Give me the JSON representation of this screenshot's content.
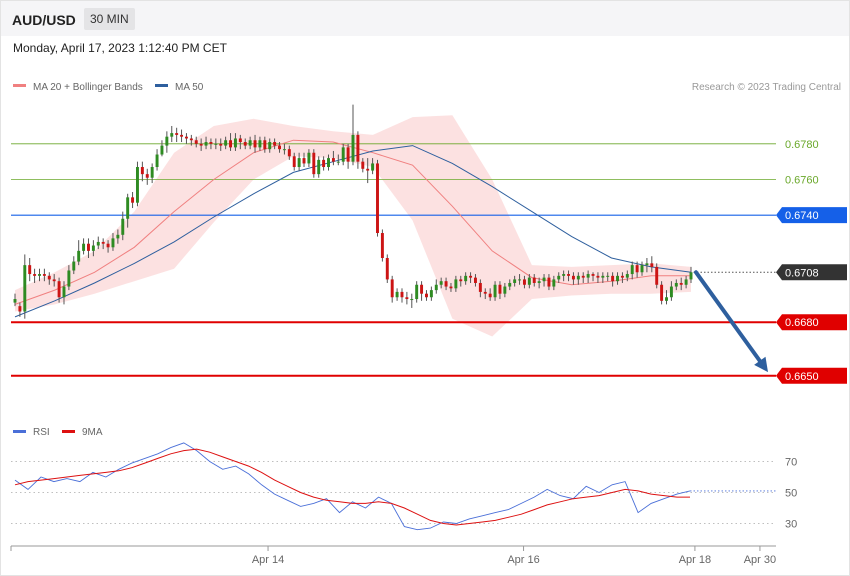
{
  "header": {
    "symbol": "AUD/USD",
    "timeframe": "30 MIN",
    "timestamp": "Monday, April 17, 2023 1:12:40 PM CET"
  },
  "legend": {
    "ma20_label": "MA 20 + Bollinger Bands",
    "ma20_color": "#f08080",
    "ma50_label": "MA 50",
    "ma50_color": "#2e5f9e",
    "copyright": "Research © 2023 Trading Central"
  },
  "rsi_legend": {
    "rsi_label": "RSI",
    "rsi_color": "#4a6fd8",
    "ma_label": "9MA",
    "ma_color": "#dd1111"
  },
  "chart_data": [
    {
      "type": "candlestick",
      "title": "",
      "ylim": [
        0.6628,
        0.6804
      ],
      "levels": [
        {
          "value": 0.678,
          "label": "0.6780",
          "kind": "target",
          "color": "#6aa82a"
        },
        {
          "value": 0.676,
          "label": "0.6760",
          "kind": "target",
          "color": "#6aa82a"
        },
        {
          "value": 0.674,
          "label": "0.6740",
          "kind": "resistance",
          "color": "#1560e8"
        },
        {
          "value": 0.6708,
          "label": "0.6708",
          "kind": "last",
          "color": "#333333"
        },
        {
          "value": 0.668,
          "label": "0.6680",
          "kind": "support",
          "color": "#e00000"
        },
        {
          "value": 0.665,
          "label": "0.6650",
          "kind": "support",
          "color": "#e00000"
        }
      ],
      "candles": [
        [
          0.6691,
          0.6693,
          0.6689,
          0.6696
        ],
        [
          0.6689,
          0.6686,
          0.6683,
          0.6691
        ],
        [
          0.6686,
          0.6712,
          0.6682,
          0.6718
        ],
        [
          0.6712,
          0.6707,
          0.6703,
          0.6716
        ],
        [
          0.6707,
          0.6706,
          0.6702,
          0.671
        ],
        [
          0.6706,
          0.6707,
          0.6703,
          0.671
        ],
        [
          0.6707,
          0.6706,
          0.6703,
          0.671
        ],
        [
          0.6706,
          0.6704,
          0.6701,
          0.6708
        ],
        [
          0.6704,
          0.6703,
          0.67,
          0.6707
        ],
        [
          0.6703,
          0.6694,
          0.6691,
          0.6705
        ],
        [
          0.6694,
          0.67,
          0.669,
          0.6703
        ],
        [
          0.67,
          0.6709,
          0.6698,
          0.6712
        ],
        [
          0.6709,
          0.6714,
          0.6707,
          0.6717
        ],
        [
          0.6714,
          0.672,
          0.6712,
          0.6726
        ],
        [
          0.672,
          0.6724,
          0.6718,
          0.6727
        ],
        [
          0.6724,
          0.672,
          0.6716,
          0.6727
        ],
        [
          0.672,
          0.6723,
          0.6717,
          0.6726
        ],
        [
          0.6723,
          0.6725,
          0.6721,
          0.6728
        ],
        [
          0.6725,
          0.6724,
          0.6721,
          0.6727
        ],
        [
          0.6724,
          0.6722,
          0.6719,
          0.6726
        ],
        [
          0.6722,
          0.6727,
          0.672,
          0.673
        ],
        [
          0.6727,
          0.6729,
          0.6724,
          0.6732
        ],
        [
          0.6729,
          0.6738,
          0.6726,
          0.6742
        ],
        [
          0.6738,
          0.675,
          0.6733,
          0.6752
        ],
        [
          0.675,
          0.6747,
          0.6744,
          0.6753
        ],
        [
          0.6747,
          0.6767,
          0.6745,
          0.677
        ],
        [
          0.6767,
          0.6763,
          0.6759,
          0.677
        ],
        [
          0.6763,
          0.6761,
          0.6757,
          0.6766
        ],
        [
          0.6761,
          0.6767,
          0.6758,
          0.6769
        ],
        [
          0.6767,
          0.6774,
          0.6765,
          0.6777
        ],
        [
          0.6774,
          0.6779,
          0.6773,
          0.6782
        ],
        [
          0.6779,
          0.6784,
          0.6775,
          0.6787
        ],
        [
          0.6784,
          0.6786,
          0.6781,
          0.679
        ],
        [
          0.6786,
          0.6785,
          0.6781,
          0.6789
        ],
        [
          0.6785,
          0.6784,
          0.6781,
          0.6788
        ],
        [
          0.6784,
          0.6783,
          0.678,
          0.6786
        ],
        [
          0.6783,
          0.6782,
          0.6779,
          0.6785
        ],
        [
          0.6782,
          0.678,
          0.6778,
          0.6784
        ],
        [
          0.678,
          0.6779,
          0.6776,
          0.6783
        ],
        [
          0.6779,
          0.6781,
          0.6777,
          0.6784
        ],
        [
          0.6781,
          0.678,
          0.6777,
          0.6783
        ],
        [
          0.678,
          0.678,
          0.6777,
          0.6783
        ],
        [
          0.678,
          0.6779,
          0.6776,
          0.6783
        ],
        [
          0.6779,
          0.6782,
          0.6777,
          0.6784
        ],
        [
          0.6782,
          0.6778,
          0.6776,
          0.6786
        ],
        [
          0.6778,
          0.6783,
          0.6776,
          0.6786
        ],
        [
          0.6783,
          0.6781,
          0.6777,
          0.6785
        ],
        [
          0.6781,
          0.6779,
          0.6777,
          0.6783
        ],
        [
          0.6779,
          0.6782,
          0.6777,
          0.6784
        ],
        [
          0.6782,
          0.6778,
          0.6775,
          0.6785
        ],
        [
          0.6778,
          0.6782,
          0.6776,
          0.6784
        ],
        [
          0.6782,
          0.6777,
          0.6775,
          0.6784
        ],
        [
          0.6777,
          0.6781,
          0.6775,
          0.6783
        ],
        [
          0.6781,
          0.6779,
          0.6777,
          0.6783
        ],
        [
          0.6779,
          0.6777,
          0.6775,
          0.6781
        ],
        [
          0.6777,
          0.6777,
          0.6774,
          0.678
        ],
        [
          0.6777,
          0.6773,
          0.6771,
          0.6779
        ],
        [
          0.6773,
          0.6767,
          0.6765,
          0.6775
        ],
        [
          0.6767,
          0.6772,
          0.6765,
          0.6775
        ],
        [
          0.6772,
          0.6769,
          0.6767,
          0.6775
        ],
        [
          0.6769,
          0.6775,
          0.6767,
          0.6777
        ],
        [
          0.6775,
          0.6763,
          0.6761,
          0.6777
        ],
        [
          0.6763,
          0.6771,
          0.6761,
          0.6773
        ],
        [
          0.6771,
          0.6767,
          0.6765,
          0.6773
        ],
        [
          0.6767,
          0.6772,
          0.6765,
          0.6774
        ],
        [
          0.6772,
          0.677,
          0.6768,
          0.6776
        ],
        [
          0.677,
          0.677,
          0.6768,
          0.6774
        ],
        [
          0.677,
          0.6778,
          0.6768,
          0.678
        ],
        [
          0.6778,
          0.677,
          0.6766,
          0.678
        ],
        [
          0.677,
          0.6785,
          0.6768,
          0.6802
        ],
        [
          0.6785,
          0.677,
          0.6766,
          0.6787
        ],
        [
          0.677,
          0.6766,
          0.6764,
          0.6772
        ],
        [
          0.6766,
          0.6765,
          0.6758,
          0.6772
        ],
        [
          0.6765,
          0.6769,
          0.6763,
          0.6772
        ],
        [
          0.6769,
          0.673,
          0.6728,
          0.6771
        ],
        [
          0.673,
          0.6716,
          0.6714,
          0.6732
        ],
        [
          0.6716,
          0.6704,
          0.6702,
          0.6718
        ],
        [
          0.6704,
          0.6694,
          0.6691,
          0.6706
        ],
        [
          0.6694,
          0.6697,
          0.6692,
          0.6699
        ],
        [
          0.6697,
          0.6694,
          0.6691,
          0.6699
        ],
        [
          0.6694,
          0.6693,
          0.669,
          0.6697
        ],
        [
          0.6693,
          0.6693,
          0.6688,
          0.6696
        ],
        [
          0.6693,
          0.6701,
          0.6691,
          0.6703
        ],
        [
          0.6701,
          0.6696,
          0.6692,
          0.6703
        ],
        [
          0.6696,
          0.6694,
          0.6692,
          0.6698
        ],
        [
          0.6694,
          0.6698,
          0.6692,
          0.67
        ],
        [
          0.6698,
          0.6701,
          0.6696,
          0.6704
        ],
        [
          0.6701,
          0.6703,
          0.6699,
          0.6705
        ],
        [
          0.6703,
          0.67,
          0.6698,
          0.6705
        ],
        [
          0.67,
          0.6699,
          0.6697,
          0.6702
        ],
        [
          0.6699,
          0.6704,
          0.6697,
          0.6706
        ],
        [
          0.6704,
          0.6703,
          0.67,
          0.6706
        ],
        [
          0.6703,
          0.6706,
          0.6701,
          0.6708
        ],
        [
          0.6706,
          0.6705,
          0.6702,
          0.6708
        ],
        [
          0.6705,
          0.6702,
          0.67,
          0.6707
        ],
        [
          0.6702,
          0.6697,
          0.6694,
          0.6704
        ],
        [
          0.6697,
          0.6696,
          0.6693,
          0.6699
        ],
        [
          0.6696,
          0.6694,
          0.6692,
          0.6699
        ],
        [
          0.6694,
          0.6701,
          0.6692,
          0.6703
        ],
        [
          0.6701,
          0.6696,
          0.6693,
          0.6703
        ],
        [
          0.6696,
          0.67,
          0.6694,
          0.6702
        ],
        [
          0.67,
          0.6702,
          0.6698,
          0.6704
        ],
        [
          0.6702,
          0.6704,
          0.67,
          0.6706
        ],
        [
          0.6704,
          0.6704,
          0.6701,
          0.6707
        ],
        [
          0.6704,
          0.6701,
          0.6699,
          0.6706
        ],
        [
          0.6701,
          0.6705,
          0.6699,
          0.6707
        ],
        [
          0.6705,
          0.6702,
          0.67,
          0.6707
        ],
        [
          0.6702,
          0.6703,
          0.6699,
          0.6705
        ],
        [
          0.6703,
          0.6705,
          0.67,
          0.6707
        ],
        [
          0.6705,
          0.67,
          0.6698,
          0.6707
        ],
        [
          0.67,
          0.6704,
          0.6698,
          0.6706
        ],
        [
          0.6704,
          0.6706,
          0.6702,
          0.6708
        ],
        [
          0.6706,
          0.6707,
          0.6703,
          0.6709
        ],
        [
          0.6707,
          0.6706,
          0.6703,
          0.6709
        ],
        [
          0.6706,
          0.6704,
          0.6701,
          0.6708
        ],
        [
          0.6704,
          0.6706,
          0.6701,
          0.6708
        ],
        [
          0.6706,
          0.6705,
          0.6702,
          0.6708
        ],
        [
          0.6705,
          0.6707,
          0.6702,
          0.6709
        ],
        [
          0.6707,
          0.6706,
          0.6703,
          0.6708
        ],
        [
          0.6706,
          0.6705,
          0.6702,
          0.6708
        ],
        [
          0.6705,
          0.6706,
          0.6702,
          0.6708
        ],
        [
          0.6706,
          0.6706,
          0.6703,
          0.6708
        ],
        [
          0.6706,
          0.6703,
          0.67,
          0.6708
        ],
        [
          0.6703,
          0.6706,
          0.6701,
          0.6708
        ],
        [
          0.6706,
          0.6705,
          0.6702,
          0.6708
        ],
        [
          0.6705,
          0.6707,
          0.6703,
          0.6709
        ],
        [
          0.6707,
          0.6712,
          0.6704,
          0.6714
        ],
        [
          0.6712,
          0.6708,
          0.6705,
          0.6714
        ],
        [
          0.6708,
          0.6712,
          0.6706,
          0.6714
        ],
        [
          0.6712,
          0.6713,
          0.6708,
          0.6716
        ],
        [
          0.6713,
          0.6711,
          0.6708,
          0.6717
        ],
        [
          0.6711,
          0.6701,
          0.6699,
          0.6713
        ],
        [
          0.6701,
          0.6692,
          0.669,
          0.6703
        ],
        [
          0.6692,
          0.6694,
          0.669,
          0.6698
        ],
        [
          0.6694,
          0.67,
          0.6692,
          0.6703
        ],
        [
          0.67,
          0.6702,
          0.6698,
          0.6704
        ],
        [
          0.6702,
          0.6701,
          0.6698,
          0.6705
        ],
        [
          0.6701,
          0.6704,
          0.6699,
          0.6706
        ],
        [
          0.6704,
          0.6708,
          0.6702,
          0.6711
        ]
      ],
      "ma50": [
        0.6683,
        0.6692,
        0.6702,
        0.6713,
        0.6725,
        0.6739,
        0.6752,
        0.6764,
        0.677,
        0.6776,
        0.6779,
        0.6769,
        0.6756,
        0.6742,
        0.6728,
        0.6716,
        0.6711,
        0.6708
      ],
      "ma20": [
        0.669,
        0.6698,
        0.6708,
        0.6722,
        0.6742,
        0.676,
        0.6775,
        0.6782,
        0.6781,
        0.6775,
        0.6768,
        0.6745,
        0.672,
        0.6705,
        0.6701,
        0.6703,
        0.6706,
        0.6706
      ],
      "bb_upper": [
        0.6698,
        0.6708,
        0.672,
        0.6742,
        0.6775,
        0.679,
        0.6794,
        0.679,
        0.6787,
        0.6785,
        0.6795,
        0.6796,
        0.676,
        0.6712,
        0.6711,
        0.6712,
        0.6713,
        0.6711
      ],
      "bb_lower": [
        0.6686,
        0.669,
        0.6696,
        0.6703,
        0.671,
        0.6736,
        0.676,
        0.6773,
        0.6772,
        0.6767,
        0.6737,
        0.6682,
        0.6672,
        0.6693,
        0.6695,
        0.6696,
        0.6696,
        0.6697
      ],
      "forecast_arrow": {
        "from": 0.6708,
        "to": 0.6652
      }
    },
    {
      "type": "line",
      "title": "",
      "ylim": [
        20,
        80
      ],
      "ticks": [
        {
          "value": 70,
          "label": "70"
        },
        {
          "value": 50,
          "label": "50"
        },
        {
          "value": 30,
          "label": "30"
        }
      ],
      "series": [
        {
          "name": "RSI",
          "values": [
            58,
            52,
            60,
            57,
            59,
            57,
            63,
            60,
            65,
            69,
            72,
            75,
            79,
            82,
            77,
            70,
            65,
            67,
            62,
            55,
            49,
            45,
            41,
            43,
            46,
            37,
            44,
            40,
            47,
            43,
            28,
            26,
            27,
            31,
            30,
            33,
            35,
            37,
            39,
            43,
            47,
            52,
            48,
            46,
            54,
            50,
            55,
            57,
            37,
            43,
            46,
            49,
            51
          ]
        },
        {
          "name": "9MA",
          "values": [
            55,
            57,
            58,
            59,
            60,
            61,
            62,
            63,
            64,
            66,
            69,
            72,
            75,
            77,
            78,
            76,
            73,
            70,
            67,
            63,
            58,
            54,
            50,
            47,
            45,
            44,
            43,
            43,
            44,
            43,
            40,
            36,
            32,
            30,
            29,
            30,
            31,
            32,
            34,
            36,
            39,
            42,
            44,
            46,
            47,
            48,
            50,
            52,
            51,
            49,
            48,
            47,
            47
          ]
        }
      ]
    }
  ],
  "axis": {
    "x_labels": [
      {
        "label": "Apr 14",
        "pos": 0.336
      },
      {
        "label": "Apr 16",
        "pos": 0.67
      },
      {
        "label": "Apr 18",
        "pos": 0.894
      },
      {
        "label": "Apr 30",
        "pos": 0.979
      }
    ]
  }
}
